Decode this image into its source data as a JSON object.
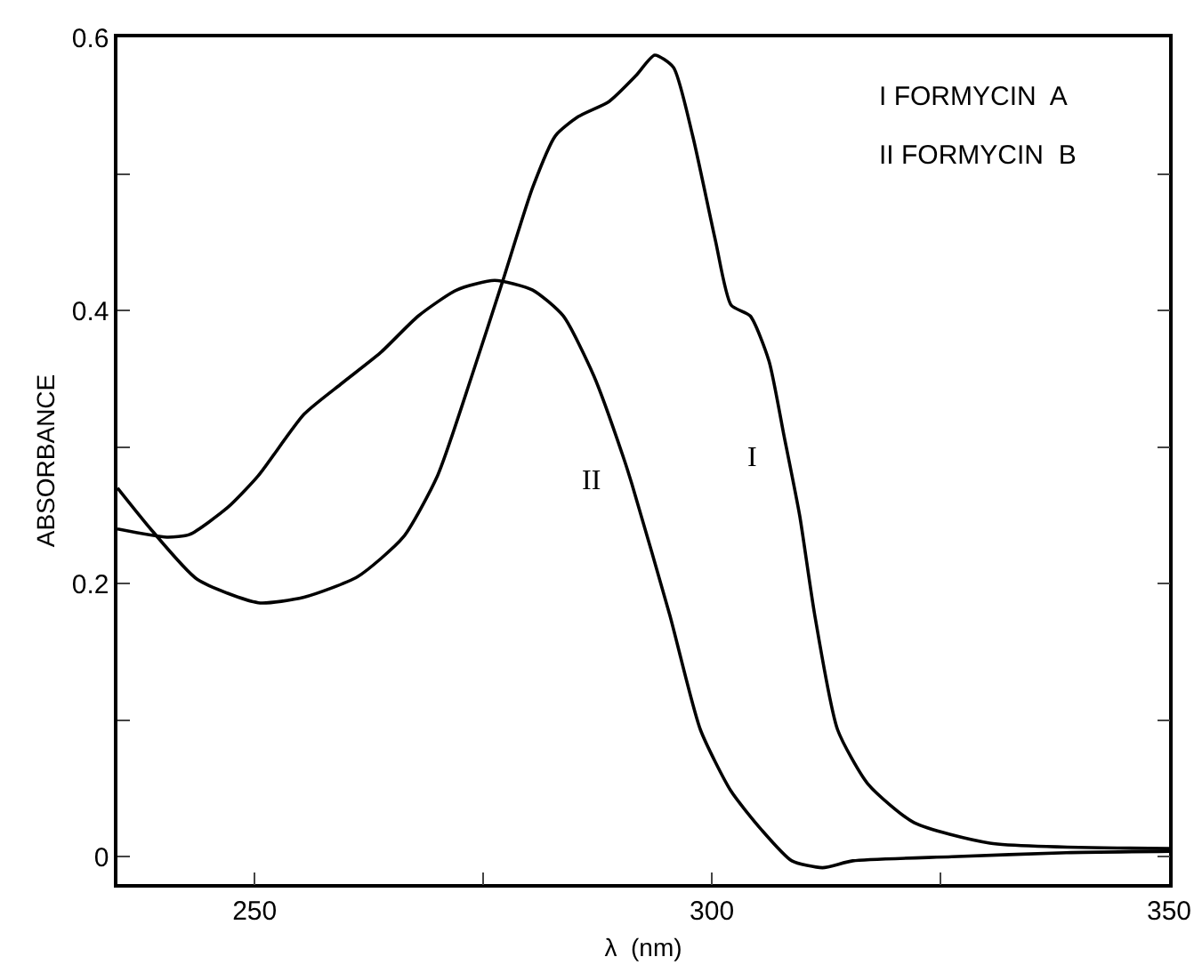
{
  "chart_data": {
    "type": "line",
    "xlabel": "λ  (nm)",
    "ylabel": "ABSORBANCE",
    "xlim": [
      235,
      350
    ],
    "ylim": [
      -0.02,
      0.6
    ],
    "xticks": [
      250,
      {
        "value": 275,
        "label": null
      },
      300,
      {
        "value": 325,
        "label": null
      },
      350
    ],
    "yticks": [
      0,
      {
        "value": 0.1,
        "label": null
      },
      0.2,
      {
        "value": 0.3,
        "label": null
      },
      0.4,
      {
        "value": 0.5,
        "label": null
      },
      0.6
    ],
    "grid": false,
    "legend": false,
    "marker": "none",
    "line_style": "solid",
    "series": [
      {
        "name": "I",
        "color": "#000000",
        "x": [
          235,
          238.75,
          243.75,
          250.4,
          255.4,
          261.25,
          266.25,
          270,
          273.75,
          277.1,
          280.4,
          282.9,
          285.4,
          288.75,
          291.7,
          293.75,
          295.8,
          297.9,
          300.4,
          302.1,
          304.2,
          306.25,
          307.9,
          309.6,
          311.25,
          313.75,
          317.1,
          322.1,
          330.4,
          350
        ],
        "values": [
          0.27,
          0.239,
          0.203,
          0.186,
          0.19,
          0.205,
          0.234,
          0.279,
          0.352,
          0.421,
          0.49,
          0.528,
          0.542,
          0.553,
          0.572,
          0.587,
          0.578,
          0.528,
          0.451,
          0.404,
          0.396,
          0.363,
          0.308,
          0.25,
          0.177,
          0.093,
          0.053,
          0.025,
          0.01,
          0.006
        ]
      },
      {
        "name": "II",
        "color": "#000000",
        "x": [
          235,
          240.4,
          242.9,
          247.1,
          250.4,
          255.4,
          259.6,
          263.75,
          267.9,
          272.1,
          276.25,
          280.4,
          283.75,
          287.1,
          290.4,
          291.25,
          295.4,
          298.75,
          302.1,
          305.4,
          308.75,
          312.1,
          315.4,
          326.25,
          338.75,
          350
        ],
        "values": [
          0.24,
          0.234,
          0.236,
          0.256,
          0.279,
          0.324,
          0.347,
          0.369,
          0.396,
          0.415,
          0.422,
          0.415,
          0.396,
          0.352,
          0.291,
          0.273,
          0.177,
          0.093,
          0.048,
          0.02,
          -0.003,
          -0.008,
          -0.003,
          0,
          0.003,
          0.004
        ]
      }
    ],
    "annotations": [
      "I FORMYCIN  A",
      "II FORMYCIN  B"
    ]
  }
}
